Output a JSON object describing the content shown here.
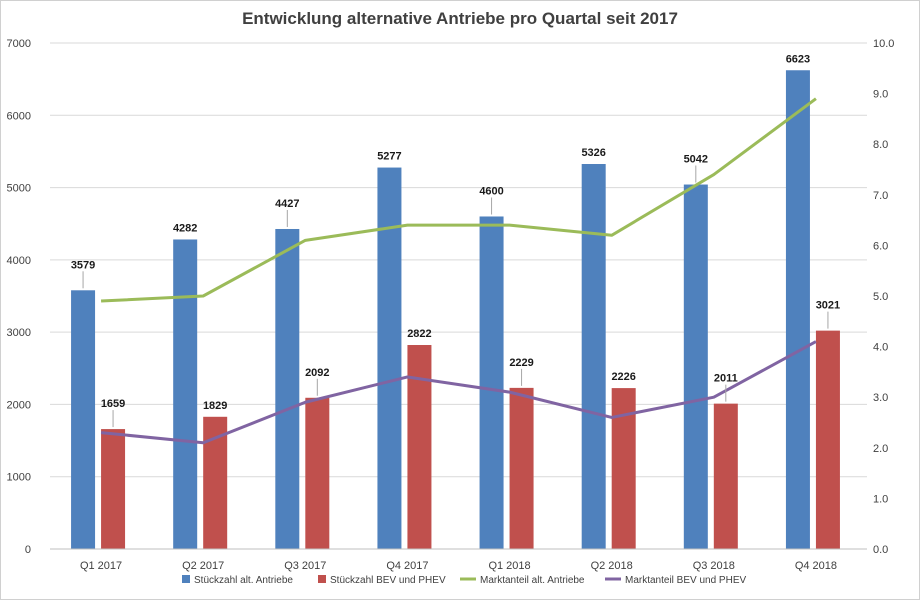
{
  "chart_data": {
    "type": "bar",
    "title": "Entwicklung alternative Antriebe pro Quartal seit 2017",
    "categories": [
      "Q1 2017",
      "Q2 2017",
      "Q3 2017",
      "Q4 2017",
      "Q1 2018",
      "Q2 2018",
      "Q3 2018",
      "Q4 2018"
    ],
    "y_left": {
      "min": 0,
      "max": 7000,
      "ticks": [
        "0",
        "1000",
        "2000",
        "3000",
        "4000",
        "5000",
        "6000",
        "7000"
      ]
    },
    "y_right": {
      "min": 0,
      "max": 10,
      "ticks": [
        "0.0",
        "1.0",
        "2.0",
        "3.0",
        "4.0",
        "5.0",
        "6.0",
        "7.0",
        "8.0",
        "9.0",
        "10.0"
      ]
    },
    "grid": true,
    "legend_position": "bottom",
    "series": [
      {
        "name": "Stückzahl alt. Antriebe",
        "kind": "bar",
        "axis": "left",
        "color": "#4f81bd",
        "values": [
          3579,
          4282,
          4427,
          5277,
          4600,
          5326,
          5042,
          6623
        ],
        "labels": [
          "3579",
          "4282",
          "4427",
          "5277",
          "4600",
          "5326",
          "5042",
          "6623"
        ]
      },
      {
        "name": "Stückzahl BEV und PHEV",
        "kind": "bar",
        "axis": "left",
        "color": "#c0504d",
        "values": [
          1659,
          1829,
          2092,
          2822,
          2229,
          2226,
          2011,
          3021
        ],
        "labels": [
          "1659",
          "1829",
          "2092",
          "2822",
          "2229",
          "2226",
          "2011",
          "3021"
        ]
      },
      {
        "name": "Marktanteil alt. Antriebe",
        "kind": "line",
        "axis": "right",
        "color": "#9bbb59",
        "values": [
          4.9,
          5.0,
          6.1,
          6.4,
          6.4,
          6.2,
          7.4,
          8.9
        ]
      },
      {
        "name": "Marktanteil BEV und PHEV",
        "kind": "line",
        "axis": "right",
        "color": "#8064a2",
        "values": [
          2.3,
          2.1,
          2.9,
          3.4,
          3.1,
          2.6,
          3.0,
          4.1
        ]
      }
    ]
  }
}
